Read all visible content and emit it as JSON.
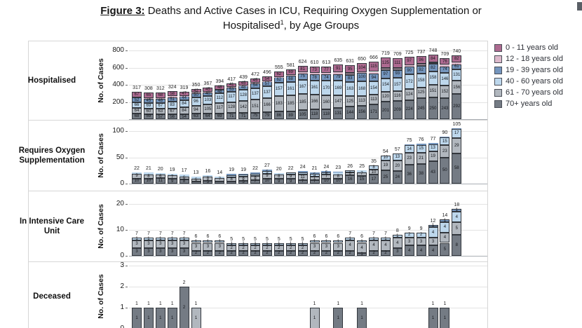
{
  "title": {
    "figure_label": "Figure 3:",
    "line1_rest": " Deaths and Active Cases in ICU, Requiring Oxygen Supplementation or",
    "line2_pre": "Hospitalised",
    "line2_sup": "1",
    "line2_post": ", by Age Groups"
  },
  "age_groups": [
    {
      "key": "g0",
      "label": "0 - 11 years old",
      "color": "#ad6a90"
    },
    {
      "key": "g12",
      "label": "12 - 18 years old",
      "color": "#dcb9cb"
    },
    {
      "key": "g19",
      "label": "19 - 39 years old",
      "color": "#7495bd"
    },
    {
      "key": "g40",
      "label": "40 - 60 years old",
      "color": "#bdd7ec"
    },
    {
      "key": "g61",
      "label": "61 - 70 years old",
      "color": "#b1b7be"
    },
    {
      "key": "g70",
      "label": "70+ years old",
      "color": "#747b84"
    }
  ],
  "chart_data": {
    "type": "bar",
    "subtype": "stacked-bar-small-multiples",
    "n_bars": 28,
    "stack_order": [
      "g70",
      "g61",
      "g40",
      "g19",
      "g12",
      "g0"
    ],
    "legend_position": "right",
    "panels": [
      {
        "row_label": "Hospitalised",
        "ylabel": "No. of Cases",
        "yticks": [
          200,
          400,
          600,
          800
        ],
        "ylim": [
          0,
          850
        ],
        "totals": [
          317,
          308,
          312,
          324,
          319,
          350,
          367,
          394,
          417,
          439,
          472,
          496,
          555,
          581,
          624,
          610,
          613,
          635,
          631,
          650,
          666,
          719,
          709,
          725,
          737,
          748,
          709,
          740
        ],
        "series": {
          "g70": [
            68,
            59,
            57,
            56,
            54,
            63,
            64,
            69,
            71,
            71,
            75,
            79,
            86,
            89,
            105,
            118,
            118,
            131,
            144,
            156,
            171,
            201,
            209,
            224,
            245,
            250,
            243,
            292
          ],
          "g61": [
            64,
            60,
            63,
            67,
            84,
            94,
            105,
            117,
            128,
            142,
            151,
            166,
            183,
            185,
            185,
            166,
            160,
            147,
            125,
            113,
            113,
            120,
            116,
            124,
            125,
            151,
            152,
            156
          ],
          "g40": [
            66,
            69,
            67,
            83,
            84,
            96,
            103,
            112,
            117,
            128,
            137,
            137,
            157,
            161,
            167,
            161,
            170,
            169,
            163,
            168,
            154,
            154,
            157,
            172,
            158,
            158,
            146,
            131
          ],
          "g19": [
            52,
            45,
            48,
            51,
            44,
            50,
            40,
            48,
            53,
            48,
            54,
            57,
            62,
            68,
            75,
            78,
            74,
            79,
            83,
            100,
            94,
            97,
            93,
            90,
            92,
            82,
            74,
            61
          ],
          "g12": [
            0,
            10,
            9,
            9,
            6,
            5,
            10,
            0,
            7,
            5,
            10,
            3,
            5,
            9,
            11,
            14,
            14,
            18,
            21,
            9,
            19,
            22,
            23,
            18,
            21,
            23,
            18,
            18
          ],
          "g0": [
            67,
            65,
            68,
            58,
            47,
            42,
            45,
            48,
            41,
            45,
            45,
            54,
            62,
            69,
            81,
            73,
            77,
            91,
            95,
            104,
            115,
            125,
            111,
            97,
            96,
            84,
            76,
            82
          ]
        }
      },
      {
        "row_label": "Requires Oxygen Supplementation",
        "ylabel": "No. of Cases",
        "yticks": [
          0,
          50,
          100
        ],
        "ylim": [
          0,
          115
        ],
        "totals": [
          22,
          21,
          20,
          19,
          17,
          13,
          16,
          14,
          19,
          19,
          22,
          27,
          20,
          22,
          24,
          21,
          24,
          23,
          26,
          25,
          35,
          54,
          57,
          75,
          76,
          77,
          90,
          105
        ],
        "series": {
          "g70": [
            10,
            10,
            11,
            9,
            8,
            4,
            5,
            4,
            4,
            5,
            7,
            10,
            9,
            9,
            7,
            7,
            10,
            10,
            16,
            15,
            17,
            25,
            24,
            36,
            38,
            43,
            50,
            58
          ],
          "g61": [
            9,
            8,
            6,
            7,
            6,
            6,
            8,
            7,
            8,
            8,
            8,
            9,
            8,
            9,
            11,
            7,
            7,
            8,
            6,
            7,
            10,
            19,
            20,
            23,
            21,
            19,
            23,
            29
          ],
          "g40": [
            3,
            3,
            3,
            3,
            3,
            3,
            3,
            3,
            4,
            4,
            4,
            5,
            3,
            4,
            4,
            5,
            5,
            3,
            4,
            3,
            8,
            10,
            13,
            14,
            15,
            13,
            15,
            17
          ],
          "g19": [
            0,
            0,
            0,
            0,
            0,
            0,
            0,
            0,
            3,
            2,
            3,
            3,
            0,
            0,
            2,
            2,
            2,
            2,
            0,
            0,
            0,
            0,
            0,
            2,
            2,
            2,
            2,
            1
          ]
        }
      },
      {
        "row_label": "In Intensive Care Unit",
        "ylabel": "No. of Cases",
        "yticks": [
          0,
          10,
          20
        ],
        "ylim": [
          0,
          21
        ],
        "totals": [
          7,
          7,
          7,
          7,
          7,
          6,
          6,
          6,
          5,
          5,
          5,
          5,
          5,
          5,
          5,
          6,
          6,
          6,
          7,
          6,
          7,
          7,
          8,
          9,
          9,
          12,
          14,
          18
        ],
        "series": {
          "g70": [
            3,
            3,
            3,
            3,
            3,
            2,
            2,
            2,
            2,
            2,
            2,
            2,
            2,
            2,
            2,
            2,
            2,
            2,
            2,
            1,
            2,
            2,
            3,
            4,
            4,
            4,
            5,
            8
          ],
          "g61": [
            3,
            3,
            3,
            3,
            3,
            3,
            3,
            3,
            2,
            2,
            2,
            2,
            2,
            2,
            2,
            3,
            3,
            3,
            4,
            4,
            4,
            4,
            4,
            3,
            3,
            3,
            4,
            5
          ],
          "g40": [
            1,
            1,
            1,
            1,
            1,
            1,
            1,
            1,
            1,
            1,
            1,
            1,
            1,
            1,
            1,
            1,
            1,
            1,
            1,
            1,
            1,
            1,
            1,
            2,
            2,
            4,
            4,
            4
          ],
          "g19": [
            0,
            0,
            0,
            0,
            0,
            0,
            0,
            0,
            0,
            0,
            0,
            0,
            0,
            0,
            0,
            0,
            0,
            0,
            0,
            0,
            0,
            0,
            0,
            0,
            0,
            1,
            1,
            1
          ]
        }
      },
      {
        "row_label": "Deceased",
        "ylabel": "No. of Cases",
        "yticks": [
          0,
          1,
          2,
          3
        ],
        "ylim": [
          0,
          3
        ],
        "totals": [
          1,
          1,
          1,
          1,
          2,
          1,
          0,
          0,
          0,
          0,
          0,
          0,
          0,
          0,
          0,
          1,
          0,
          1,
          0,
          1,
          0,
          0,
          0,
          0,
          0,
          1,
          1,
          0
        ],
        "series": {
          "g70": [
            1,
            1,
            1,
            1,
            2,
            0,
            0,
            0,
            0,
            0,
            0,
            0,
            0,
            0,
            0,
            0,
            0,
            1,
            0,
            1,
            0,
            0,
            0,
            0,
            0,
            1,
            1,
            0
          ],
          "g61": [
            0,
            0,
            0,
            0,
            0,
            1,
            0,
            0,
            0,
            0,
            0,
            0,
            0,
            0,
            0,
            1,
            0,
            0,
            0,
            0,
            0,
            0,
            0,
            0,
            0,
            0,
            0,
            0
          ]
        }
      }
    ]
  }
}
